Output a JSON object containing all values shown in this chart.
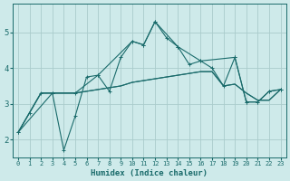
{
  "title": "",
  "xlabel": "Humidex (Indice chaleur)",
  "background_color": "#ceeaea",
  "grid_color": "#aacccc",
  "line_color": "#1a6b6b",
  "x_ticks": [
    0,
    1,
    2,
    3,
    4,
    5,
    6,
    7,
    8,
    9,
    10,
    11,
    12,
    13,
    14,
    15,
    16,
    17,
    18,
    19,
    20,
    21,
    22,
    23
  ],
  "y_ticks": [
    2,
    3,
    4,
    5
  ],
  "ylim": [
    1.5,
    5.8
  ],
  "xlim": [
    -0.5,
    23.5
  ],
  "line1_x": [
    0,
    1,
    2,
    3,
    4,
    5,
    6,
    7,
    8,
    9,
    10,
    11,
    12,
    13,
    14,
    15,
    16,
    17,
    18,
    19,
    20,
    21,
    22,
    23
  ],
  "line1_y": [
    2.2,
    2.75,
    3.3,
    3.3,
    1.7,
    2.65,
    3.75,
    3.8,
    3.35,
    4.3,
    4.75,
    4.65,
    5.3,
    4.85,
    4.6,
    4.1,
    4.2,
    4.0,
    3.5,
    4.3,
    3.05,
    3.05,
    3.35,
    3.4
  ],
  "line2_x": [
    0,
    2,
    3,
    4,
    5,
    6,
    7,
    8,
    9,
    10,
    11,
    12,
    13,
    14,
    15,
    16,
    17,
    18,
    19,
    20,
    21,
    22,
    23
  ],
  "line2_y": [
    2.2,
    3.3,
    3.3,
    3.3,
    3.3,
    3.35,
    3.4,
    3.45,
    3.5,
    3.6,
    3.65,
    3.7,
    3.75,
    3.8,
    3.85,
    3.9,
    3.9,
    3.5,
    3.55,
    3.3,
    3.1,
    3.1,
    3.4
  ],
  "line3_x": [
    0,
    1,
    2,
    3,
    4,
    5,
    6,
    7,
    8,
    9,
    10,
    11,
    12,
    13,
    14,
    15,
    16,
    17,
    18,
    19,
    20,
    21,
    22,
    23
  ],
  "line3_y": [
    2.2,
    2.75,
    3.3,
    3.3,
    3.3,
    3.3,
    3.35,
    3.4,
    3.45,
    3.5,
    3.6,
    3.65,
    3.7,
    3.75,
    3.8,
    3.85,
    3.9,
    3.9,
    3.5,
    3.55,
    3.3,
    3.1,
    3.1,
    3.4
  ],
  "line4_x": [
    0,
    3,
    5,
    7,
    10,
    11,
    12,
    14,
    16,
    19,
    20,
    21,
    22,
    23
  ],
  "line4_y": [
    2.2,
    3.3,
    3.3,
    3.8,
    4.75,
    4.65,
    5.3,
    4.6,
    4.2,
    4.3,
    3.05,
    3.05,
    3.35,
    3.4
  ]
}
